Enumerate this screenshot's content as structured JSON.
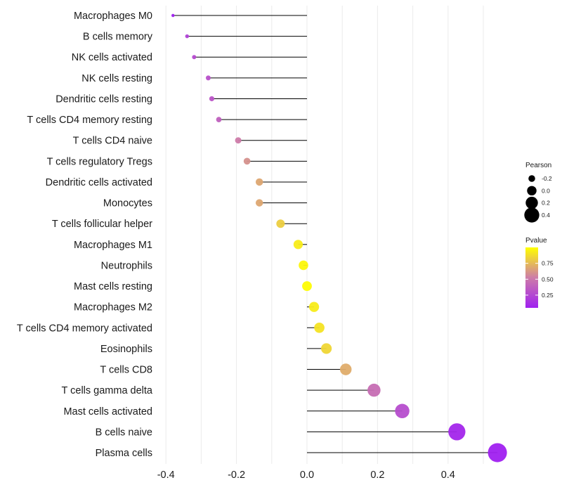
{
  "chart_data": {
    "type": "lollipop",
    "title": "",
    "xlabel": "",
    "ylabel": "",
    "xlim": [
      -0.4,
      0.54
    ],
    "xticks": [
      -0.4,
      -0.2,
      0.0,
      0.2,
      0.4
    ],
    "xtick_labels": [
      "-0.4",
      "-0.2",
      "0.0",
      "0.2",
      "0.4"
    ],
    "categories": [
      "Macrophages M0",
      "B cells memory",
      "NK cells activated",
      "NK cells resting",
      "Dendritic cells resting",
      "T cells CD4 memory resting",
      "T cells CD4 naive",
      "T cells regulatory  Tregs",
      "Dendritic cells activated",
      "Monocytes",
      "T cells follicular helper",
      "Macrophages M1",
      "Neutrophils",
      "Mast cells resting",
      "Macrophages M2",
      "T cells CD4 memory activated",
      "Eosinophils",
      "T cells CD8",
      "T cells gamma delta",
      "Mast cells activated",
      "B cells naive",
      "Plasma cells"
    ],
    "pearson": [
      -0.38,
      -0.34,
      -0.32,
      -0.28,
      -0.27,
      -0.25,
      -0.195,
      -0.17,
      -0.135,
      -0.135,
      -0.075,
      -0.025,
      -0.01,
      0.0,
      0.02,
      0.035,
      0.055,
      0.11,
      0.19,
      0.27,
      0.425,
      0.54
    ],
    "pvalue": [
      0.02,
      0.22,
      0.27,
      0.3,
      0.32,
      0.38,
      0.52,
      0.6,
      0.68,
      0.68,
      0.82,
      0.93,
      0.97,
      0.99,
      0.93,
      0.9,
      0.85,
      0.7,
      0.45,
      0.28,
      0.08,
      0.02
    ],
    "color_scale": {
      "low": "#a020f0",
      "mid": "#cd7ca8",
      "high": "#ffff00"
    },
    "legend_position": "right",
    "legends": {
      "size": {
        "title": "Pearson",
        "entries": [
          {
            "label": "-0.2",
            "value": -0.2
          },
          {
            "label": "0.0",
            "value": 0.0
          },
          {
            "label": "0.2",
            "value": 0.2
          },
          {
            "label": "0.4",
            "value": 0.4
          }
        ]
      },
      "color": {
        "title": "Pvalue",
        "range": [
          0.05,
          1.0
        ],
        "ticks": [
          {
            "label": "0.75",
            "value": 0.75
          },
          {
            "label": "0.50",
            "value": 0.5
          },
          {
            "label": "0.25",
            "value": 0.25
          }
        ]
      }
    }
  }
}
